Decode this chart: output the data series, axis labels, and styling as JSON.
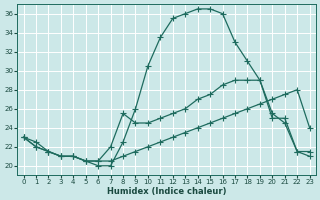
{
  "xlabel": "Humidex (Indice chaleur)",
  "bg_color": "#cce8e8",
  "grid_color": "#ffffff",
  "line_color": "#1e6b5e",
  "xlim": [
    -0.5,
    23.5
  ],
  "ylim": [
    19.0,
    37.0
  ],
  "xticks": [
    0,
    1,
    2,
    3,
    4,
    5,
    6,
    7,
    8,
    9,
    10,
    11,
    12,
    13,
    14,
    15,
    16,
    17,
    18,
    19,
    20,
    21,
    22,
    23
  ],
  "yticks": [
    20,
    22,
    24,
    26,
    28,
    30,
    32,
    34,
    36
  ],
  "line1_x": [
    0,
    1,
    2,
    3,
    4,
    5,
    6,
    7,
    8,
    9,
    10,
    11,
    12,
    13,
    14,
    15,
    16,
    17,
    18,
    19,
    20,
    21,
    22,
    23
  ],
  "line1_y": [
    23.0,
    22.5,
    21.5,
    21.0,
    21.0,
    20.5,
    20.0,
    20.0,
    22.5,
    26.0,
    30.5,
    33.5,
    35.5,
    36.0,
    36.5,
    36.5,
    36.0,
    33.0,
    31.0,
    29.0,
    25.5,
    24.5,
    21.5,
    21.0
  ],
  "line2_x": [
    0,
    1,
    2,
    3,
    4,
    5,
    6,
    7,
    8,
    9,
    10,
    11,
    12,
    13,
    14,
    15,
    16,
    17,
    18,
    19,
    20,
    21,
    22,
    23
  ],
  "line2_y": [
    23.0,
    22.0,
    21.5,
    21.0,
    21.0,
    20.5,
    20.5,
    22.0,
    25.5,
    24.5,
    24.5,
    25.0,
    25.5,
    26.0,
    27.0,
    27.5,
    28.5,
    29.0,
    29.0,
    29.0,
    25.0,
    25.0,
    21.5,
    21.5
  ],
  "line3_x": [
    0,
    1,
    2,
    3,
    4,
    5,
    6,
    7,
    8,
    9,
    10,
    11,
    12,
    13,
    14,
    15,
    16,
    17,
    18,
    19,
    20,
    21,
    22,
    23
  ],
  "line3_y": [
    23.0,
    22.0,
    21.5,
    21.0,
    21.0,
    20.5,
    20.5,
    20.5,
    21.0,
    21.5,
    22.0,
    22.5,
    23.0,
    23.5,
    24.0,
    24.5,
    25.0,
    25.5,
    26.0,
    26.5,
    27.0,
    27.5,
    28.0,
    24.0
  ]
}
